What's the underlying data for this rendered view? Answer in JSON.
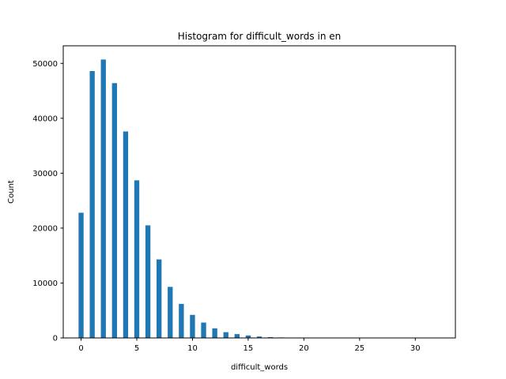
{
  "chart_data": {
    "type": "bar",
    "title": "Histogram for difficult_words in en",
    "xlabel": "difficult_words",
    "ylabel": "Count",
    "xlim": [
      -1.6,
      33.6
    ],
    "ylim": [
      0,
      53200
    ],
    "xticks": [
      0,
      5,
      10,
      15,
      20,
      25,
      30
    ],
    "yticks": [
      0,
      10000,
      20000,
      30000,
      40000,
      50000
    ],
    "bar_width": 0.45,
    "color": "#1f77b4",
    "grid": false,
    "x": [
      0,
      1,
      2,
      3,
      4,
      5,
      6,
      7,
      8,
      9,
      10,
      11,
      12,
      13,
      14,
      15,
      16,
      17,
      18,
      19,
      20,
      21,
      22,
      23,
      24,
      25,
      26,
      27,
      28,
      29,
      30,
      31,
      32
    ],
    "values": [
      22800,
      48600,
      50700,
      46400,
      37600,
      28700,
      20500,
      14300,
      9300,
      6200,
      4200,
      2800,
      1750,
      1050,
      700,
      450,
      260,
      150,
      90,
      60,
      40,
      25,
      15,
      10,
      6,
      4,
      3,
      2,
      1,
      1,
      1,
      1,
      1
    ]
  }
}
